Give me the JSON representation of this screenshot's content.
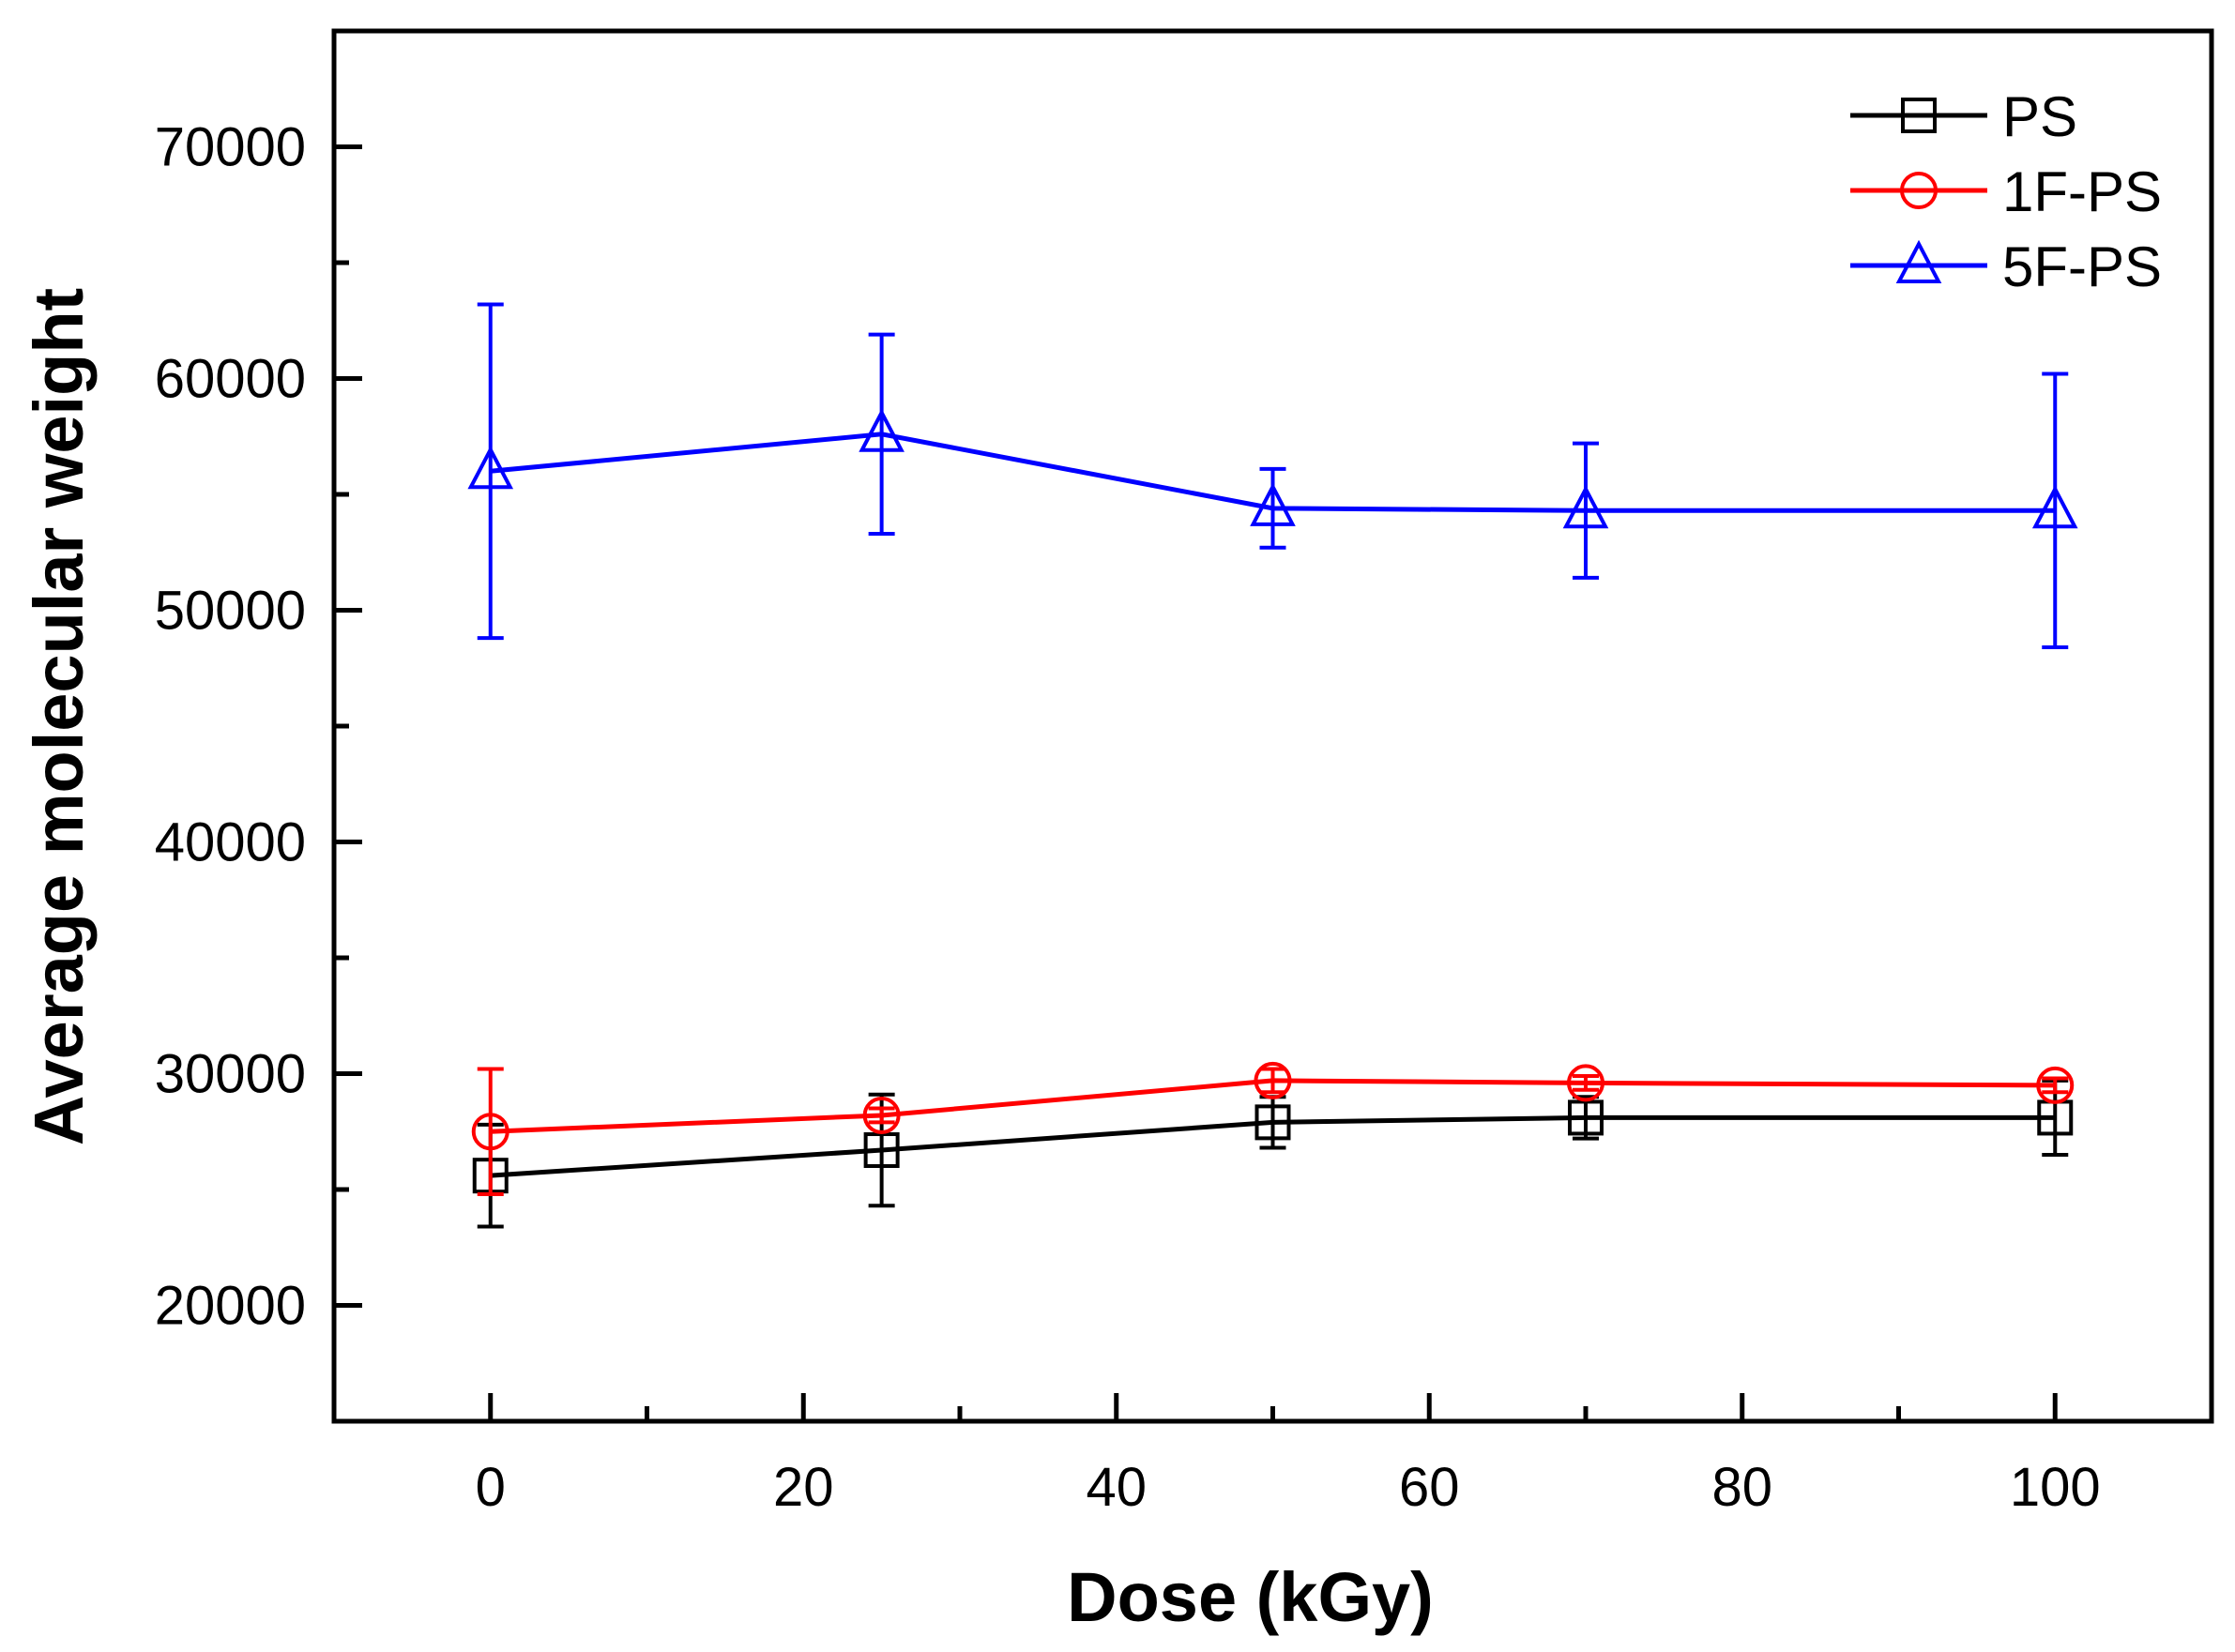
{
  "chart_data": {
    "type": "line",
    "title": "",
    "xlabel": "Dose (kGy)",
    "ylabel": "Average molecular weight",
    "xlim": [
      -10,
      110
    ],
    "ylim": [
      15000,
      75000
    ],
    "xticks": [
      0,
      20,
      40,
      60,
      80,
      100
    ],
    "yticks": [
      20000,
      30000,
      40000,
      50000,
      60000,
      70000
    ],
    "xticks_minor": [
      10,
      30,
      50,
      70,
      90
    ],
    "yticks_minor": [
      25000,
      35000,
      45000,
      55000,
      65000
    ],
    "grid": false,
    "legend_position": "top-right",
    "x": [
      0,
      25,
      50,
      70,
      100
    ],
    "series": [
      {
        "name": "PS",
        "color": "#000000",
        "marker": "square",
        "values": [
          25600,
          26700,
          27900,
          28100,
          28100
        ],
        "errors": [
          2200,
          2400,
          1100,
          900,
          1600
        ]
      },
      {
        "name": "1F-PS",
        "color": "#ff0000",
        "marker": "circle",
        "values": [
          27500,
          28200,
          29700,
          29600,
          29500
        ],
        "errors": [
          2700,
          300,
          500,
          300,
          300
        ]
      },
      {
        "name": "5F-PS",
        "color": "#0000ff",
        "marker": "triangle",
        "values": [
          56000,
          57600,
          54400,
          54300,
          54300
        ],
        "errors": [
          7200,
          4300,
          1700,
          2900,
          5900
        ]
      }
    ]
  }
}
